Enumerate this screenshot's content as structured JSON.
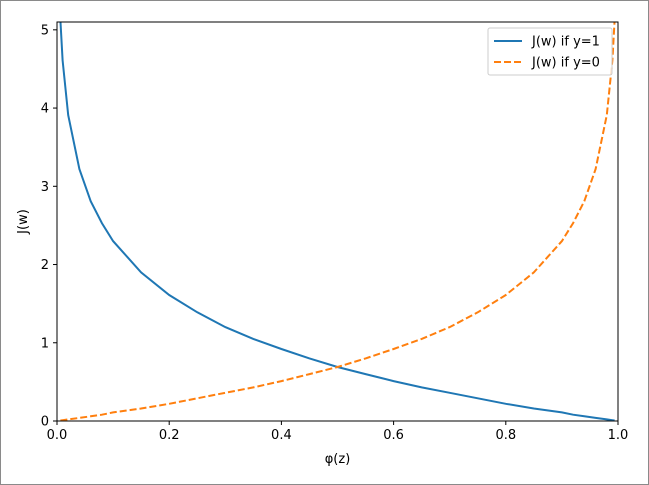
{
  "chart_data": {
    "type": "line",
    "title": "",
    "xlabel": "φ(z)",
    "ylabel": "J(w)",
    "xlim": [
      0.0,
      1.0
    ],
    "ylim": [
      0,
      5.1
    ],
    "xticks": [
      0.0,
      0.2,
      0.4,
      0.6,
      0.8,
      1.0
    ],
    "xtick_labels": [
      "0.0",
      "0.2",
      "0.4",
      "0.6",
      "0.8",
      "1.0"
    ],
    "yticks": [
      0,
      1,
      2,
      3,
      4,
      5
    ],
    "ytick_labels": [
      "0",
      "1",
      "2",
      "3",
      "4",
      "5"
    ],
    "grid": false,
    "legend_position": "top-right",
    "x": [
      0.006,
      0.01,
      0.02,
      0.04,
      0.06,
      0.08,
      0.1,
      0.15,
      0.2,
      0.25,
      0.3,
      0.35,
      0.4,
      0.45,
      0.5,
      0.55,
      0.6,
      0.65,
      0.7,
      0.75,
      0.8,
      0.85,
      0.9,
      0.92,
      0.94,
      0.96,
      0.98,
      0.99,
      0.994
    ],
    "series": [
      {
        "name": "J(w) if y=1",
        "color": "#1f77b4",
        "style": "solid",
        "values": [
          5.12,
          4.61,
          3.91,
          3.22,
          2.81,
          2.53,
          2.3,
          1.9,
          1.61,
          1.39,
          1.2,
          1.05,
          0.92,
          0.8,
          0.69,
          0.6,
          0.51,
          0.43,
          0.36,
          0.29,
          0.22,
          0.16,
          0.11,
          0.08,
          0.06,
          0.04,
          0.02,
          0.01,
          0.006
        ]
      },
      {
        "name": "J(w) if y=0",
        "color": "#ff7f0e",
        "style": "dashed",
        "values": [
          0.006,
          0.01,
          0.02,
          0.04,
          0.06,
          0.08,
          0.11,
          0.16,
          0.22,
          0.29,
          0.36,
          0.43,
          0.51,
          0.6,
          0.69,
          0.8,
          0.92,
          1.05,
          1.2,
          1.39,
          1.61,
          1.9,
          2.3,
          2.53,
          2.81,
          3.22,
          3.91,
          4.61,
          5.12
        ]
      }
    ]
  }
}
